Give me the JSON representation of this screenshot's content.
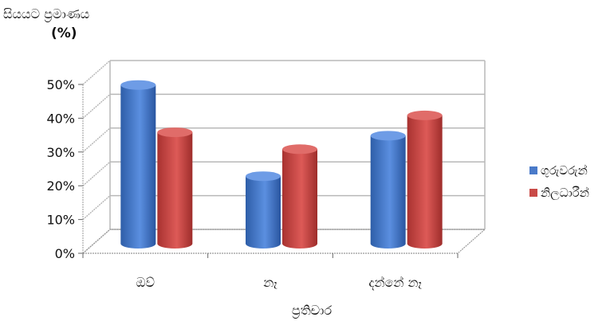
{
  "chart_data": {
    "type": "bar",
    "title": "",
    "ylabel_line1": "සියයට ප්‍රමාණය",
    "ylabel_line2": "(%)",
    "xlabel": "ප්‍රතිචාර",
    "categories": [
      "ඔව්",
      "නෑ",
      "දන්නේ නෑ"
    ],
    "ylim": [
      0,
      50
    ],
    "yticks": [
      0,
      10,
      20,
      30,
      40,
      50
    ],
    "ytick_labels": [
      "0%",
      "10%",
      "20%",
      "30%",
      "40%",
      "50%"
    ],
    "grid": true,
    "legend_position": "right",
    "series": [
      {
        "name": "ගුරුවරුන්",
        "color": "#4a7ac9",
        "values": [
          47,
          20,
          32
        ]
      },
      {
        "name": "නිලධාරීන්",
        "color": "#c94a47",
        "values": [
          33,
          28,
          38
        ]
      }
    ]
  }
}
